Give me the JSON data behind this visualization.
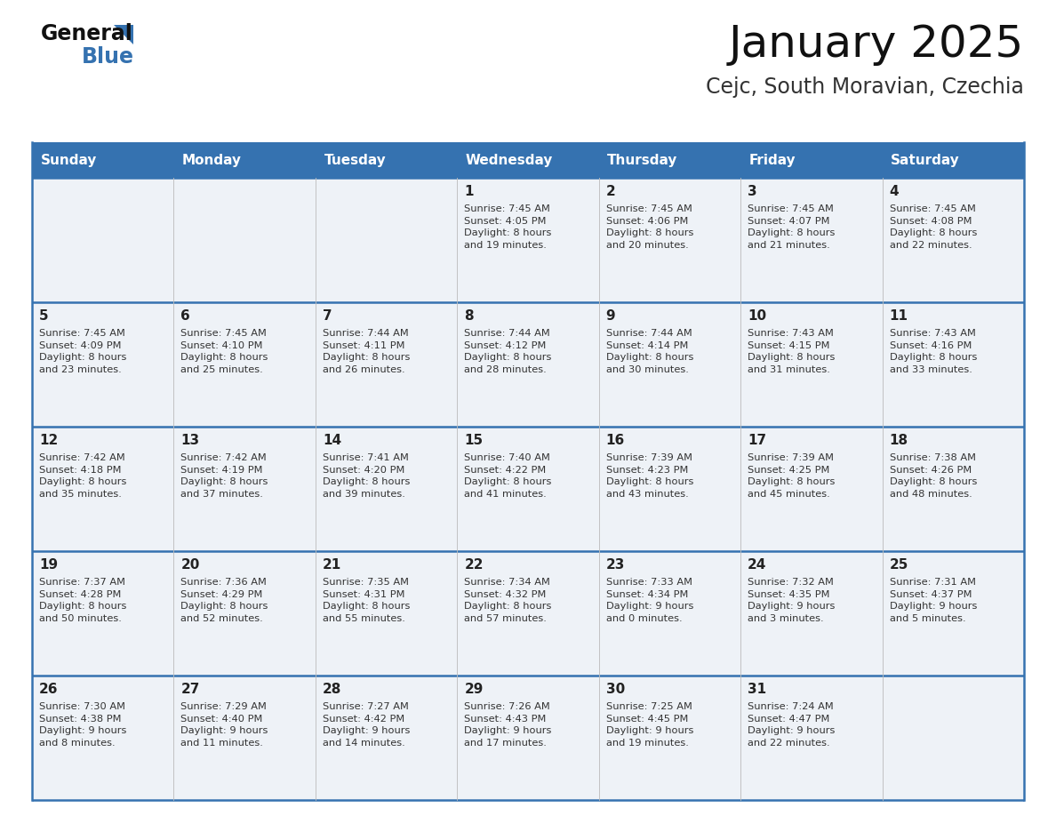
{
  "title": "January 2025",
  "subtitle": "Cejc, South Moravian, Czechia",
  "header_color": "#3572B0",
  "header_text_color": "#FFFFFF",
  "cell_bg_color": "#EEF2F7",
  "border_color": "#3572B0",
  "text_color": "#333333",
  "day_headers": [
    "Sunday",
    "Monday",
    "Tuesday",
    "Wednesday",
    "Thursday",
    "Friday",
    "Saturday"
  ],
  "days_data": [
    {
      "day": 0,
      "row": 0,
      "col": 0,
      "text": ""
    },
    {
      "day": 0,
      "row": 0,
      "col": 1,
      "text": ""
    },
    {
      "day": 0,
      "row": 0,
      "col": 2,
      "text": ""
    },
    {
      "day": 1,
      "row": 0,
      "col": 3,
      "text": "Sunrise: 7:45 AM\nSunset: 4:05 PM\nDaylight: 8 hours\nand 19 minutes."
    },
    {
      "day": 2,
      "row": 0,
      "col": 4,
      "text": "Sunrise: 7:45 AM\nSunset: 4:06 PM\nDaylight: 8 hours\nand 20 minutes."
    },
    {
      "day": 3,
      "row": 0,
      "col": 5,
      "text": "Sunrise: 7:45 AM\nSunset: 4:07 PM\nDaylight: 8 hours\nand 21 minutes."
    },
    {
      "day": 4,
      "row": 0,
      "col": 6,
      "text": "Sunrise: 7:45 AM\nSunset: 4:08 PM\nDaylight: 8 hours\nand 22 minutes."
    },
    {
      "day": 5,
      "row": 1,
      "col": 0,
      "text": "Sunrise: 7:45 AM\nSunset: 4:09 PM\nDaylight: 8 hours\nand 23 minutes."
    },
    {
      "day": 6,
      "row": 1,
      "col": 1,
      "text": "Sunrise: 7:45 AM\nSunset: 4:10 PM\nDaylight: 8 hours\nand 25 minutes."
    },
    {
      "day": 7,
      "row": 1,
      "col": 2,
      "text": "Sunrise: 7:44 AM\nSunset: 4:11 PM\nDaylight: 8 hours\nand 26 minutes."
    },
    {
      "day": 8,
      "row": 1,
      "col": 3,
      "text": "Sunrise: 7:44 AM\nSunset: 4:12 PM\nDaylight: 8 hours\nand 28 minutes."
    },
    {
      "day": 9,
      "row": 1,
      "col": 4,
      "text": "Sunrise: 7:44 AM\nSunset: 4:14 PM\nDaylight: 8 hours\nand 30 minutes."
    },
    {
      "day": 10,
      "row": 1,
      "col": 5,
      "text": "Sunrise: 7:43 AM\nSunset: 4:15 PM\nDaylight: 8 hours\nand 31 minutes."
    },
    {
      "day": 11,
      "row": 1,
      "col": 6,
      "text": "Sunrise: 7:43 AM\nSunset: 4:16 PM\nDaylight: 8 hours\nand 33 minutes."
    },
    {
      "day": 12,
      "row": 2,
      "col": 0,
      "text": "Sunrise: 7:42 AM\nSunset: 4:18 PM\nDaylight: 8 hours\nand 35 minutes."
    },
    {
      "day": 13,
      "row": 2,
      "col": 1,
      "text": "Sunrise: 7:42 AM\nSunset: 4:19 PM\nDaylight: 8 hours\nand 37 minutes."
    },
    {
      "day": 14,
      "row": 2,
      "col": 2,
      "text": "Sunrise: 7:41 AM\nSunset: 4:20 PM\nDaylight: 8 hours\nand 39 minutes."
    },
    {
      "day": 15,
      "row": 2,
      "col": 3,
      "text": "Sunrise: 7:40 AM\nSunset: 4:22 PM\nDaylight: 8 hours\nand 41 minutes."
    },
    {
      "day": 16,
      "row": 2,
      "col": 4,
      "text": "Sunrise: 7:39 AM\nSunset: 4:23 PM\nDaylight: 8 hours\nand 43 minutes."
    },
    {
      "day": 17,
      "row": 2,
      "col": 5,
      "text": "Sunrise: 7:39 AM\nSunset: 4:25 PM\nDaylight: 8 hours\nand 45 minutes."
    },
    {
      "day": 18,
      "row": 2,
      "col": 6,
      "text": "Sunrise: 7:38 AM\nSunset: 4:26 PM\nDaylight: 8 hours\nand 48 minutes."
    },
    {
      "day": 19,
      "row": 3,
      "col": 0,
      "text": "Sunrise: 7:37 AM\nSunset: 4:28 PM\nDaylight: 8 hours\nand 50 minutes."
    },
    {
      "day": 20,
      "row": 3,
      "col": 1,
      "text": "Sunrise: 7:36 AM\nSunset: 4:29 PM\nDaylight: 8 hours\nand 52 minutes."
    },
    {
      "day": 21,
      "row": 3,
      "col": 2,
      "text": "Sunrise: 7:35 AM\nSunset: 4:31 PM\nDaylight: 8 hours\nand 55 minutes."
    },
    {
      "day": 22,
      "row": 3,
      "col": 3,
      "text": "Sunrise: 7:34 AM\nSunset: 4:32 PM\nDaylight: 8 hours\nand 57 minutes."
    },
    {
      "day": 23,
      "row": 3,
      "col": 4,
      "text": "Sunrise: 7:33 AM\nSunset: 4:34 PM\nDaylight: 9 hours\nand 0 minutes."
    },
    {
      "day": 24,
      "row": 3,
      "col": 5,
      "text": "Sunrise: 7:32 AM\nSunset: 4:35 PM\nDaylight: 9 hours\nand 3 minutes."
    },
    {
      "day": 25,
      "row": 3,
      "col": 6,
      "text": "Sunrise: 7:31 AM\nSunset: 4:37 PM\nDaylight: 9 hours\nand 5 minutes."
    },
    {
      "day": 26,
      "row": 4,
      "col": 0,
      "text": "Sunrise: 7:30 AM\nSunset: 4:38 PM\nDaylight: 9 hours\nand 8 minutes."
    },
    {
      "day": 27,
      "row": 4,
      "col": 1,
      "text": "Sunrise: 7:29 AM\nSunset: 4:40 PM\nDaylight: 9 hours\nand 11 minutes."
    },
    {
      "day": 28,
      "row": 4,
      "col": 2,
      "text": "Sunrise: 7:27 AM\nSunset: 4:42 PM\nDaylight: 9 hours\nand 14 minutes."
    },
    {
      "day": 29,
      "row": 4,
      "col": 3,
      "text": "Sunrise: 7:26 AM\nSunset: 4:43 PM\nDaylight: 9 hours\nand 17 minutes."
    },
    {
      "day": 30,
      "row": 4,
      "col": 4,
      "text": "Sunrise: 7:25 AM\nSunset: 4:45 PM\nDaylight: 9 hours\nand 19 minutes."
    },
    {
      "day": 31,
      "row": 4,
      "col": 5,
      "text": "Sunrise: 7:24 AM\nSunset: 4:47 PM\nDaylight: 9 hours\nand 22 minutes."
    },
    {
      "day": 0,
      "row": 4,
      "col": 6,
      "text": ""
    }
  ]
}
